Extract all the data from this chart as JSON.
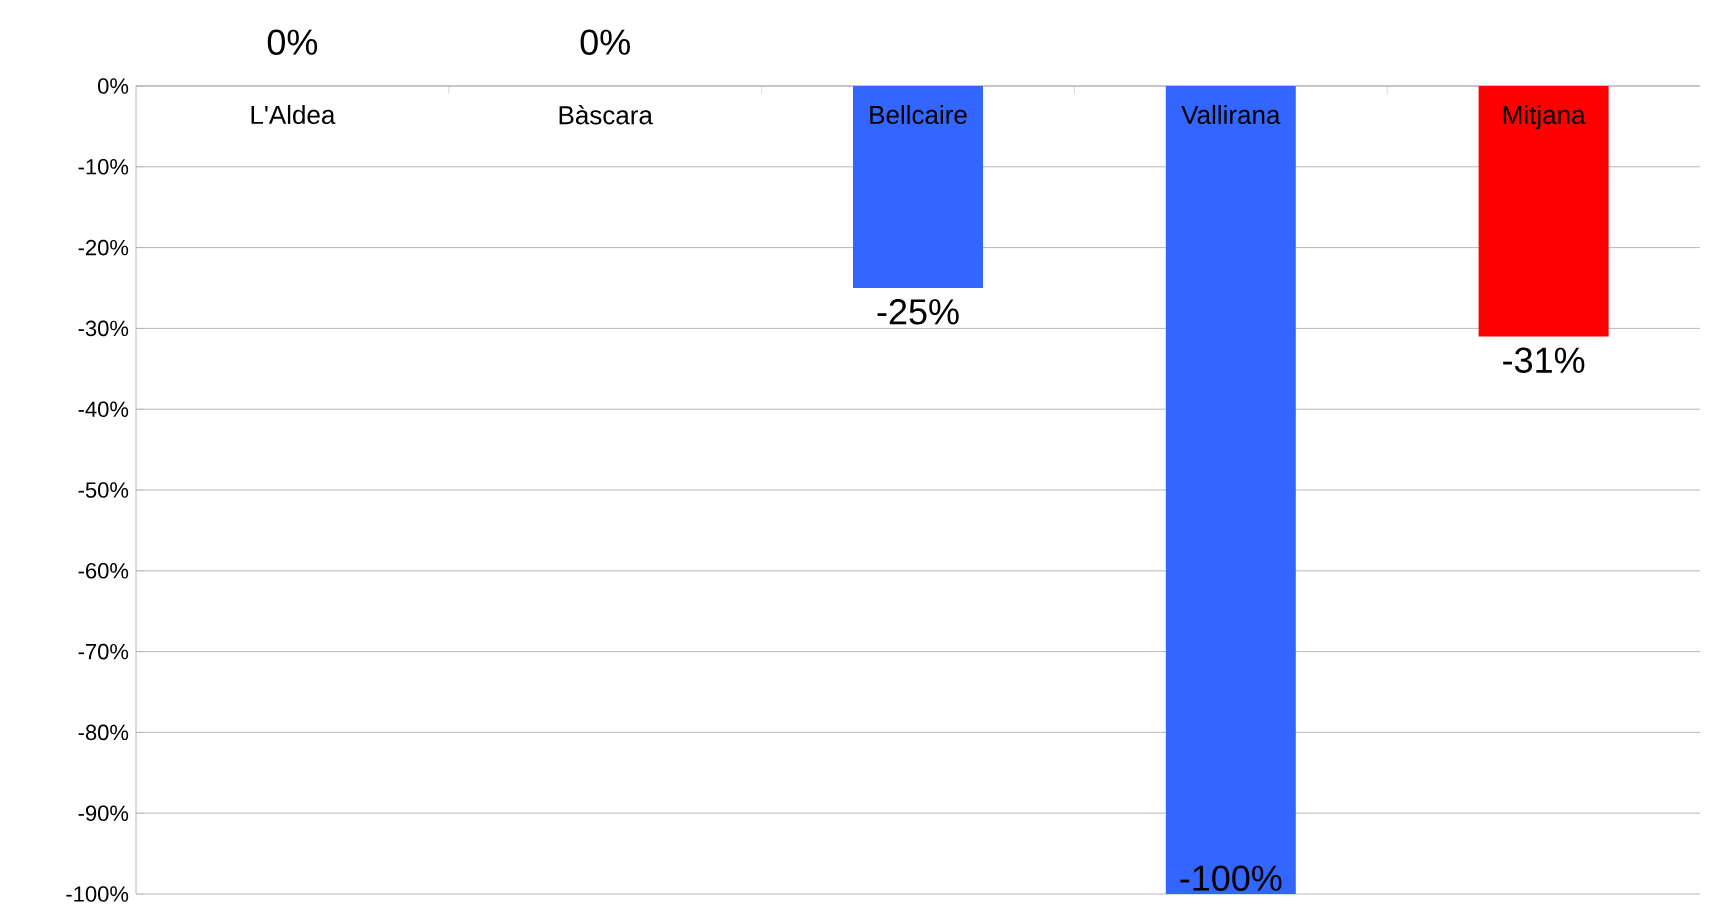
{
  "chart_data": {
    "type": "bar",
    "categories": [
      "L'Aldea",
      "Bàscara",
      "Bellcaire",
      "Vallirana",
      "Mitjana"
    ],
    "values": [
      0,
      0,
      -25,
      -100,
      -31
    ],
    "colors": [
      "#3366ff",
      "#3366ff",
      "#3366ff",
      "#3366ff",
      "#ff0000"
    ],
    "value_labels": [
      "0%",
      "0%",
      "-25%",
      "-100%",
      "-31%"
    ],
    "ylim": [
      -100,
      0
    ],
    "yticks": [
      {
        "value": 0,
        "label": "0%"
      },
      {
        "value": -10,
        "label": "-10%"
      },
      {
        "value": -20,
        "label": "-20%"
      },
      {
        "value": -30,
        "label": "-30%"
      },
      {
        "value": -40,
        "label": "-40%"
      },
      {
        "value": -50,
        "label": "-50%"
      },
      {
        "value": -60,
        "label": "-60%"
      },
      {
        "value": -70,
        "label": "-70%"
      },
      {
        "value": -80,
        "label": "-80%"
      },
      {
        "value": -90,
        "label": "-90%"
      },
      {
        "value": -100,
        "label": "-100%"
      }
    ],
    "grid": "y"
  }
}
